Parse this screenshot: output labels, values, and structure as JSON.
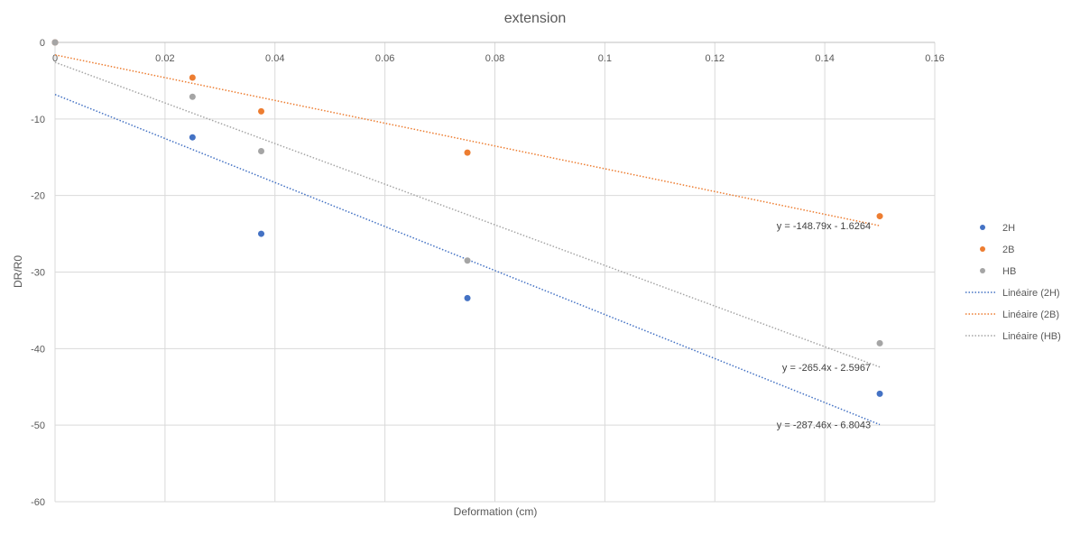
{
  "chart_data": {
    "type": "scatter",
    "title": "extension",
    "xlabel": "Deformation (cm)",
    "ylabel": "DR/R0",
    "xlim": [
      0,
      0.16
    ],
    "ylim": [
      -60,
      0
    ],
    "x_ticks": [
      0,
      0.02,
      0.04,
      0.06,
      0.08,
      0.1,
      0.12,
      0.14,
      0.16
    ],
    "x_tick_labels": [
      "0",
      "0.02",
      "0.04",
      "0.06",
      "0.08",
      "0.1",
      "0.12",
      "0.14",
      "0.16"
    ],
    "y_ticks": [
      0,
      -10,
      -20,
      -30,
      -40,
      -50,
      -60
    ],
    "y_tick_labels": [
      "0",
      "-10",
      "-20",
      "-30",
      "-40",
      "-50",
      "-60"
    ],
    "grid": true,
    "legend_position": "right",
    "series": [
      {
        "name": "2H",
        "color": "#4472C4",
        "x": [
          0,
          0.025,
          0.0375,
          0.075,
          0.15
        ],
        "y": [
          0,
          -12.4,
          -25,
          -33.4,
          -45.9
        ]
      },
      {
        "name": "2B",
        "color": "#ED7D31",
        "x": [
          0,
          0.025,
          0.0375,
          0.075,
          0.15
        ],
        "y": [
          0,
          -4.6,
          -9,
          -14.4,
          -22.7
        ]
      },
      {
        "name": "HB",
        "color": "#A5A5A5",
        "x": [
          0,
          0.025,
          0.0375,
          0.075,
          0.15
        ],
        "y": [
          0,
          -7.1,
          -14.2,
          -28.5,
          -39.3
        ]
      }
    ],
    "trendlines": [
      {
        "name": "Linéaire (2H)",
        "color": "#4472C4",
        "slope": -287.46,
        "intercept": -6.8043,
        "x_range": [
          0,
          0.15
        ],
        "equation": "y = -287.46x - 6.8043"
      },
      {
        "name": "Linéaire (2B)",
        "color": "#ED7D31",
        "slope": -148.79,
        "intercept": -1.6264,
        "x_range": [
          0,
          0.15
        ],
        "equation": "y = -148.79x - 1.6264"
      },
      {
        "name": "Linéaire (HB)",
        "color": "#A5A5A5",
        "slope": -265.4,
        "intercept": -2.5967,
        "x_range": [
          0,
          0.15
        ],
        "equation": "y = -265.4x - 2.5967"
      }
    ]
  }
}
